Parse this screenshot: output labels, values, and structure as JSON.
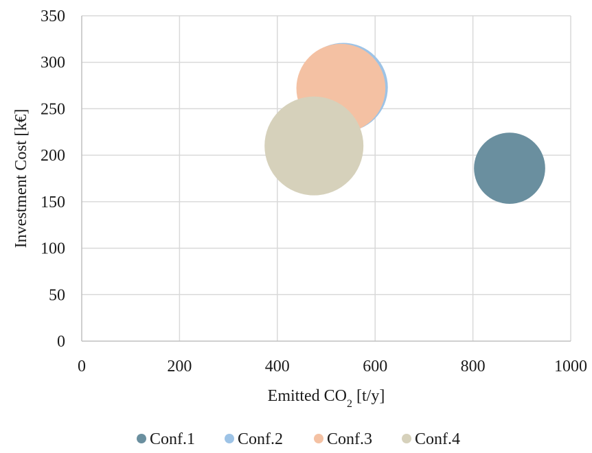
{
  "chart_data": {
    "type": "bubble",
    "xlabel": {
      "main": "Emitted CO",
      "sub": "2",
      "rest": " [t/y]"
    },
    "ylabel": "Investment Cost [k€]",
    "xlim": [
      0,
      1000
    ],
    "ylim": [
      0,
      350
    ],
    "xticks": [
      0,
      200,
      400,
      600,
      800,
      1000
    ],
    "yticks": [
      0,
      50,
      100,
      150,
      200,
      250,
      300,
      350
    ],
    "grid": true,
    "legend_position": "bottom",
    "series": [
      {
        "name": "Conf.1",
        "x": 875,
        "y": 186,
        "color": "#6a8f9f",
        "size": 0.72
      },
      {
        "name": "Conf.2",
        "x": 535,
        "y": 273,
        "color": "#9dc3e6",
        "size": 0.9
      },
      {
        "name": "Conf.3",
        "x": 530,
        "y": 272,
        "color": "#f4c1a3",
        "size": 0.9
      },
      {
        "name": "Conf.4",
        "x": 475,
        "y": 210,
        "color": "#d6d1bb",
        "size": 1.0
      }
    ]
  }
}
